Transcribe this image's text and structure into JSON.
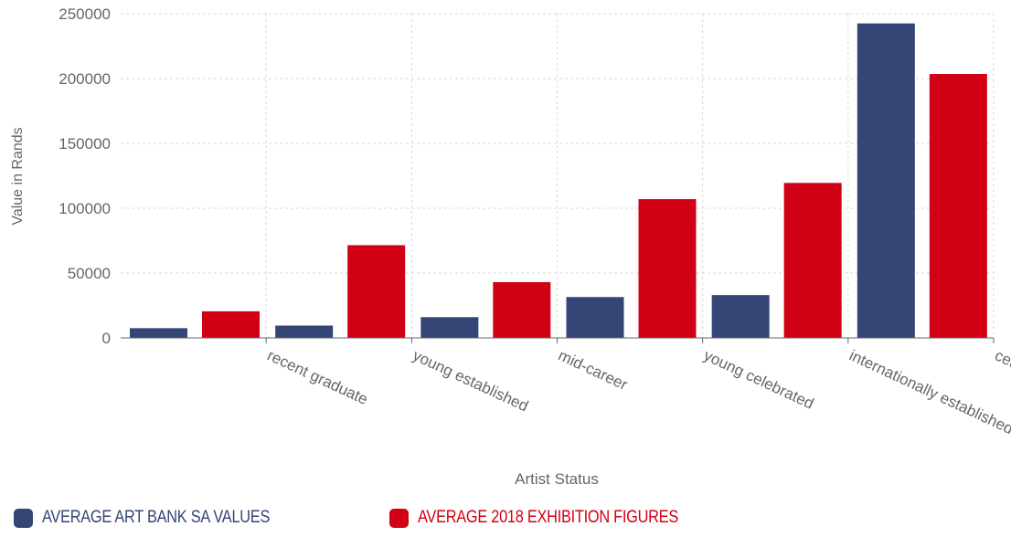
{
  "colors": {
    "series_1": "#344576",
    "series_2": "#d10015",
    "axis_text": "#666666",
    "grid": "#d9d9d9"
  },
  "chart_data": {
    "type": "bar",
    "title": "",
    "xlabel": "Artist Status",
    "ylabel": "Value in Rands",
    "categories": [
      "recent graduate",
      "young established",
      "mid-career",
      "young celebrated",
      "internationally established",
      "celebrated"
    ],
    "series": [
      {
        "name": "AVERAGE ART BANK SA VALUES",
        "values": [
          7500,
          9500,
          16000,
          31500,
          33000,
          242500
        ]
      },
      {
        "name": "AVERAGE 2018 EXHIBITION FIGURES",
        "values": [
          20500,
          71500,
          43000,
          107000,
          119500,
          203500
        ]
      }
    ],
    "ylim": [
      0,
      250000
    ],
    "yticks": [
      "0",
      "50000",
      "100000",
      "150000",
      "200000",
      "250000"
    ],
    "grid": true,
    "legend_position": "bottom-left"
  }
}
